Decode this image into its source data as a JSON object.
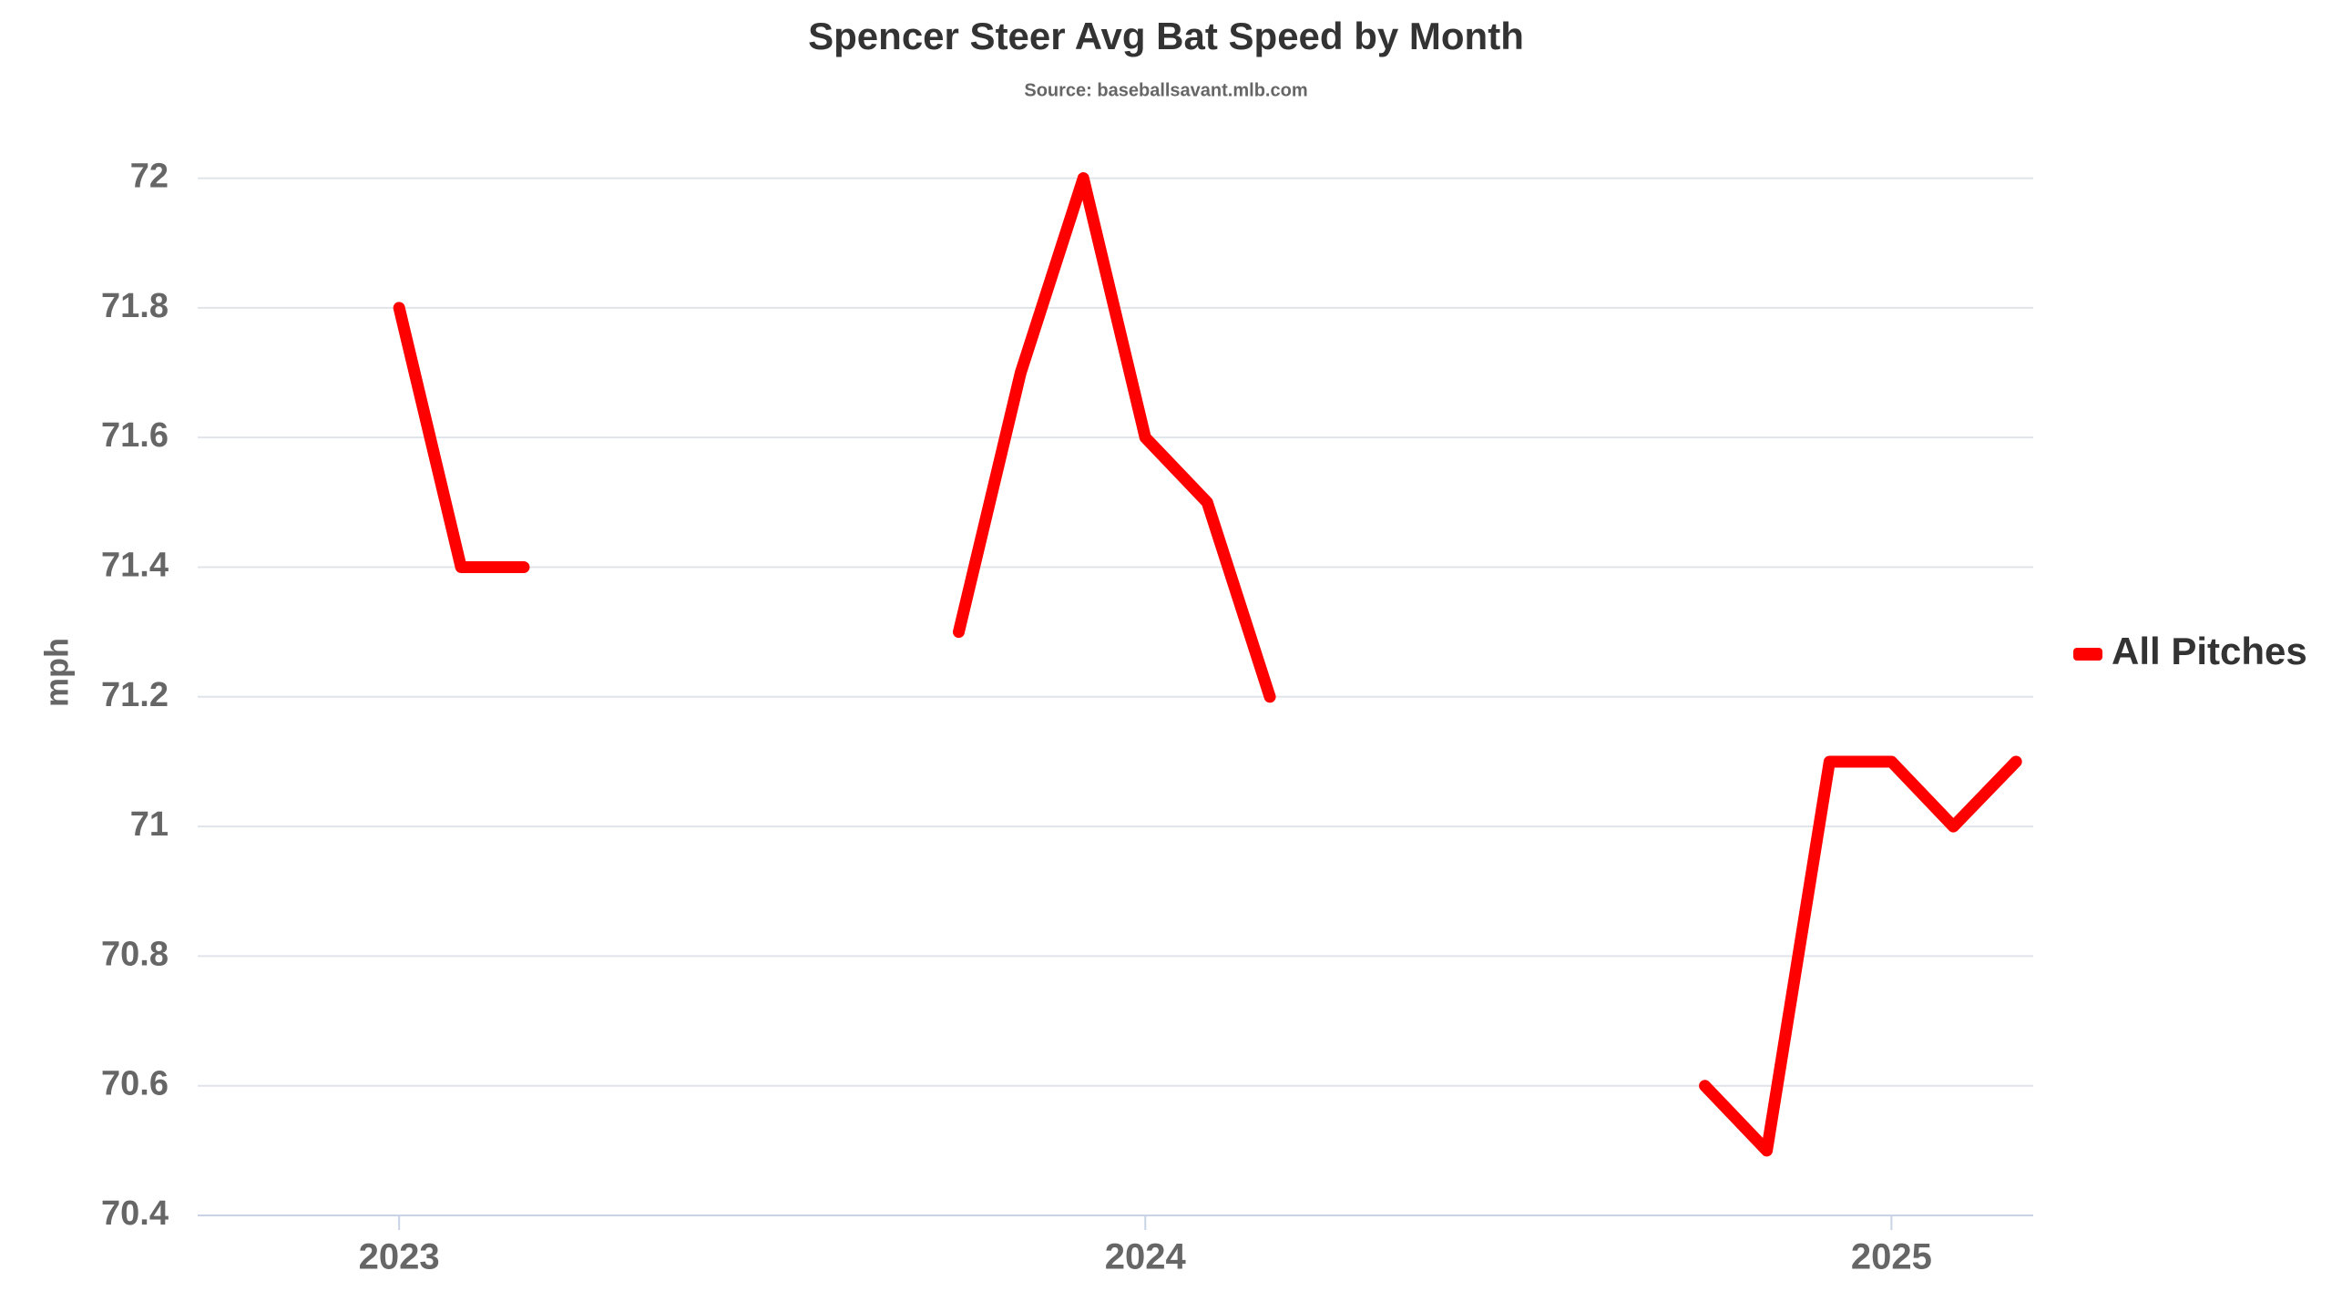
{
  "chart_data": {
    "type": "line",
    "title": "Spencer Steer Avg Bat Speed by Month",
    "subtitle": "Source: baseballsavant.mlb.com",
    "y_label": "mph",
    "x": [
      2023.0,
      2023.083,
      2023.167,
      2023.5,
      2023.75,
      2023.833,
      2023.917,
      2024.0,
      2024.083,
      2024.167,
      2024.5,
      2024.75,
      2024.833,
      2024.917,
      2025.0,
      2025.083,
      2025.167
    ],
    "series": [
      {
        "name": "All Pitches",
        "color": "#ff0000",
        "values": [
          71.8,
          71.4,
          71.4,
          null,
          71.3,
          71.7,
          72.0,
          71.6,
          71.5,
          71.2,
          null,
          70.6,
          70.5,
          71.1,
          71.1,
          71.0,
          71.1
        ]
      }
    ],
    "xlim": [
      2022.73,
      2025.19
    ],
    "xticks": [
      2023,
      2024,
      2025
    ],
    "ylim": [
      70.4,
      72.05
    ],
    "yticks": [
      70.4,
      70.6,
      70.8,
      71,
      71.2,
      71.4,
      71.6,
      71.8,
      72
    ],
    "grid": true,
    "legend": "right"
  }
}
